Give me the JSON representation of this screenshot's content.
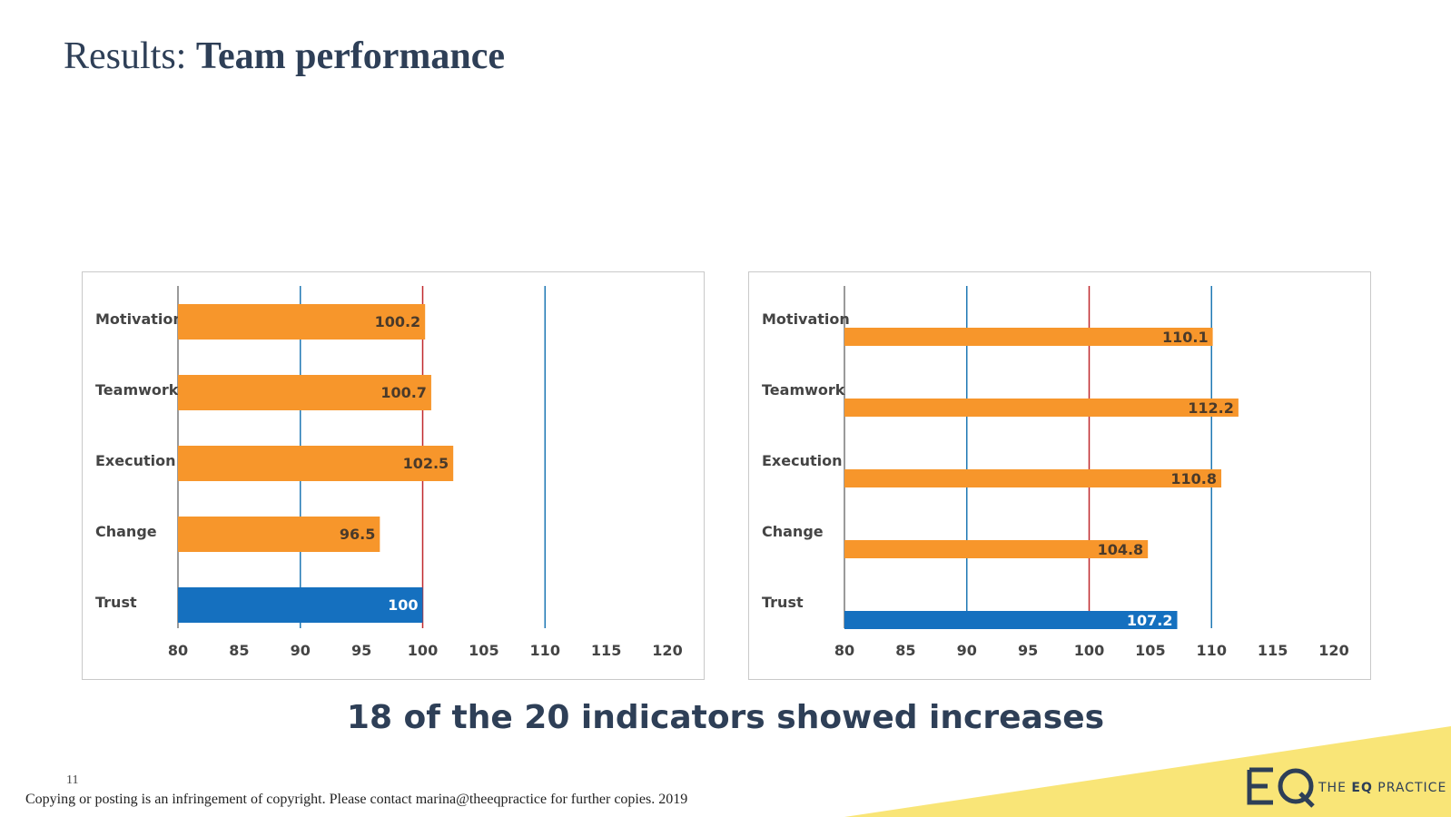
{
  "slide": {
    "title_prefix": "Results:",
    "title_main": "Team performance",
    "headline": "18 of the 20 indicators showed increases",
    "page_number": "11",
    "footer": "Copying or posting is an infringement of copyright. Please contact  marina@theeqpractice for further copies. 2019"
  },
  "logo": {
    "mark": "EQ",
    "text_pre": "THE ",
    "text_bold": "EQ",
    "text_post": " PRACTICE"
  },
  "colors": {
    "bar": "#f7962b",
    "highlight_bar": "#1570bf",
    "reference_line": "#c0282d",
    "grid_line": "#1f78b4",
    "axis_text": "#444444",
    "title": "#2e3f57",
    "accent_yellow": "#f9e577"
  },
  "chart_data": [
    {
      "type": "bar",
      "orientation": "horizontal",
      "categories": [
        "Motivation",
        "Teamwork",
        "Execution",
        "Change",
        "Trust"
      ],
      "values": [
        100.2,
        100.7,
        102.5,
        96.5,
        100
      ],
      "value_labels": [
        "100.2",
        "100.7",
        "102.5",
        "96.5",
        "100"
      ],
      "highlight": "Trust",
      "xlim": [
        80,
        120
      ],
      "xticks": [
        80,
        85,
        90,
        95,
        100,
        105,
        110,
        115,
        120
      ],
      "reference_lines": [
        {
          "value": 90,
          "color": "blue"
        },
        {
          "value": 100,
          "color": "red"
        },
        {
          "value": 110,
          "color": "blue"
        }
      ],
      "bar_style": "thick-centered"
    },
    {
      "type": "bar",
      "orientation": "horizontal",
      "categories": [
        "Motivation",
        "Teamwork",
        "Execution",
        "Change",
        "Trust"
      ],
      "values": [
        110.1,
        112.2,
        110.8,
        104.8,
        107.2
      ],
      "value_labels": [
        "110.1",
        "112.2",
        "110.8",
        "104.8",
        "107.2"
      ],
      "highlight": "Trust",
      "xlim": [
        80,
        120
      ],
      "xticks": [
        80,
        85,
        90,
        95,
        100,
        105,
        110,
        115,
        120
      ],
      "reference_lines": [
        {
          "value": 90,
          "color": "blue"
        },
        {
          "value": 100,
          "color": "red"
        },
        {
          "value": 110,
          "color": "blue"
        }
      ],
      "bar_style": "thin-below-label"
    }
  ]
}
